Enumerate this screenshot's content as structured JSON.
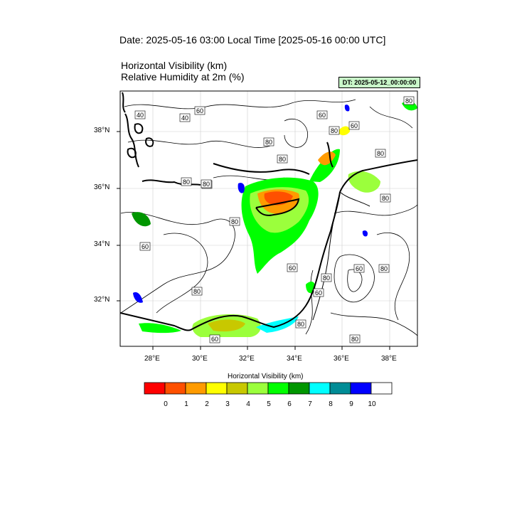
{
  "title": "Date: 2025-05-16  03:00 Local Time [2025-05-16  00:00 UTC]",
  "subtitle_1": "Horizontal Visibility   (km)",
  "subtitle_2": "Relative Humidity at 2m   (%)",
  "dt_label": "DT: 2025-05-12_00:00:00",
  "map": {
    "lat_labels": [
      "38°N",
      "36°N",
      "34°N",
      "32°N"
    ],
    "lon_labels": [
      "28°E",
      "30°E",
      "32°E",
      "34°E",
      "36°E",
      "38°E"
    ],
    "contour_labels": [
      "40",
      "40",
      "60",
      "60",
      "80",
      "80",
      "80",
      "60",
      "80",
      "80",
      "80",
      "80",
      "80",
      "80",
      "60",
      "60",
      "80",
      "60",
      "80",
      "80",
      "60",
      "80",
      "60",
      "80",
      "80"
    ]
  },
  "colorbar": {
    "title": "Horizontal Visibility  (km)",
    "ticks": [
      "0",
      "1",
      "2",
      "3",
      "4",
      "5",
      "6",
      "7",
      "8",
      "9",
      "10"
    ],
    "colors": [
      "#ff0000",
      "#ff5000",
      "#ff9b00",
      "#ffff00",
      "#c8c800",
      "#9bff3c",
      "#00ff00",
      "#009600",
      "#00ffff",
      "#008c96",
      "#0000ff",
      "#ffffff"
    ]
  }
}
